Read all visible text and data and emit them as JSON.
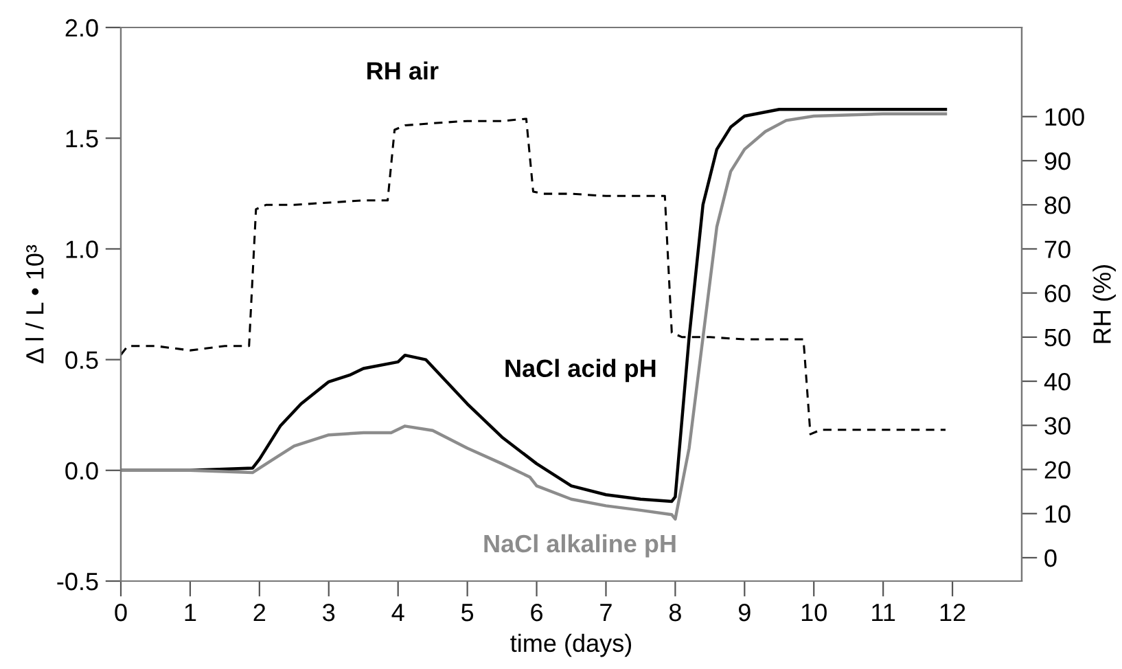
{
  "chart_data": {
    "type": "line",
    "xlabel": "time (days)",
    "ylabel": "Δ l / L • 10³",
    "y2label": "RH (%)",
    "xlim": [
      0,
      13
    ],
    "xticks": [
      0,
      1,
      2,
      3,
      4,
      5,
      6,
      7,
      8,
      9,
      10,
      11,
      12
    ],
    "ylim": [
      -0.5,
      2.0
    ],
    "yticks": [
      -0.5,
      {
        "value": 0,
        "label": "0.0"
      },
      0.5,
      {
        "value": 1,
        "label": "1.0"
      },
      1.5,
      {
        "value": 2,
        "label": "2.0"
      }
    ],
    "y2lim": [
      -5.3,
      120.2
    ],
    "y2ticks": [
      0,
      10,
      20,
      30,
      40,
      50,
      60,
      70,
      80,
      90,
      100
    ],
    "grid": false,
    "legend": false,
    "marker": "none",
    "series": [
      {
        "name": "RH air",
        "axis": "y2",
        "color": "#000000",
        "line_style": "dashed",
        "x": [
          0,
          0.1,
          0.5,
          1.0,
          1.5,
          1.85,
          1.95,
          2.1,
          2.5,
          3.0,
          3.5,
          3.85,
          3.95,
          4.1,
          4.5,
          5.0,
          5.5,
          5.85,
          5.95,
          6.1,
          6.5,
          7.0,
          7.5,
          7.85,
          7.95,
          8.1,
          8.5,
          9.0,
          9.5,
          9.85,
          9.95,
          10.1,
          10.5,
          11.0,
          11.9
        ],
        "values": [
          46,
          48,
          48,
          47,
          48,
          48,
          79,
          80,
          80,
          80.5,
          81,
          81,
          97,
          98,
          98.5,
          99,
          99,
          99.5,
          83,
          82.5,
          82.5,
          82,
          82,
          82,
          51,
          50,
          50,
          49.5,
          49.5,
          49.5,
          28,
          29,
          29,
          29,
          29
        ]
      },
      {
        "name": "NaCl acid pH",
        "axis": "y",
        "color": "#000000",
        "line_style": "solid",
        "x": [
          0,
          1.0,
          1.9,
          2.0,
          2.3,
          2.6,
          3.0,
          3.3,
          3.5,
          4.0,
          4.1,
          4.4,
          4.7,
          5.0,
          5.5,
          6.0,
          6.5,
          7.0,
          7.5,
          7.95,
          8.0,
          8.2,
          8.4,
          8.6,
          8.8,
          9.0,
          9.5,
          10,
          11,
          11.9
        ],
        "values": [
          0,
          0,
          0.01,
          0.05,
          0.2,
          0.3,
          0.4,
          0.43,
          0.46,
          0.49,
          0.52,
          0.5,
          0.4,
          0.3,
          0.15,
          0.03,
          -0.07,
          -0.11,
          -0.13,
          -0.14,
          -0.12,
          0.6,
          1.2,
          1.45,
          1.55,
          1.6,
          1.63,
          1.63,
          1.63,
          1.63
        ]
      },
      {
        "name": "NaCl alkaline pH",
        "axis": "y",
        "color": "#8c8c8c",
        "line_style": "solid",
        "x": [
          0,
          1.0,
          1.9,
          2.2,
          2.5,
          3.0,
          3.5,
          3.9,
          4.1,
          4.5,
          5.0,
          5.5,
          5.9,
          6.0,
          6.5,
          7.0,
          7.5,
          7.95,
          8.0,
          8.2,
          8.4,
          8.6,
          8.8,
          9.0,
          9.3,
          9.6,
          10,
          11,
          11.9
        ],
        "values": [
          0,
          0,
          -0.01,
          0.05,
          0.11,
          0.16,
          0.17,
          0.17,
          0.2,
          0.18,
          0.1,
          0.03,
          -0.03,
          -0.07,
          -0.13,
          -0.16,
          -0.18,
          -0.2,
          -0.22,
          0.1,
          0.6,
          1.1,
          1.35,
          1.45,
          1.53,
          1.58,
          1.6,
          1.61,
          1.61
        ]
      }
    ]
  }
}
